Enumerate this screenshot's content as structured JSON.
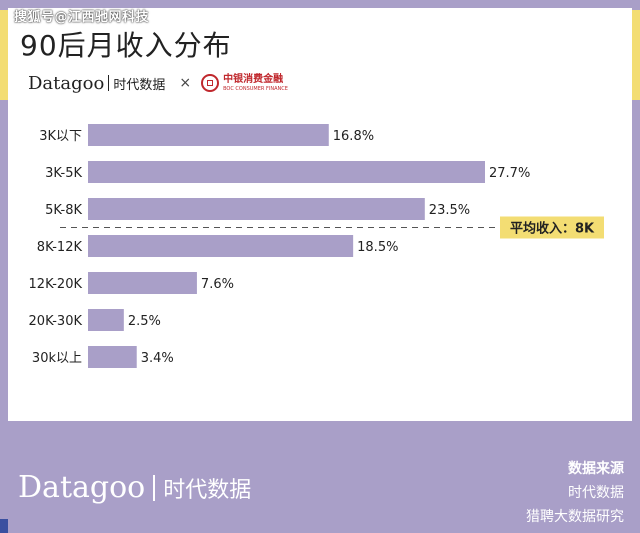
{
  "watermark": "搜狐号@江西驰网科技",
  "title": "90后月收入分布",
  "brand": {
    "logo_en": "Datagoo",
    "logo_cn": "时代数据",
    "cross": "×",
    "partner_cn": "中银消费金融",
    "partner_en": "BOC CONSUMER FINANCE"
  },
  "colors": {
    "bar": "#a99fc8",
    "background": "#a99fc8",
    "accent": "#f3dd73",
    "boc_red": "#c0282d"
  },
  "chart_data": {
    "type": "bar",
    "orientation": "horizontal",
    "categories": [
      "3K以下",
      "3K-5K",
      "5K-8K",
      "8K-12K",
      "12K-20K",
      "20K-30K",
      "30k以上"
    ],
    "values": [
      16.8,
      27.7,
      23.5,
      18.5,
      7.6,
      2.5,
      3.4
    ],
    "value_labels": [
      "16.8%",
      "27.7%",
      "23.5%",
      "18.5%",
      "7.6%",
      "2.5%",
      "3.4%"
    ],
    "xlim": [
      0,
      27.7
    ],
    "grid": false,
    "annotation": {
      "label": "平均收入：8K",
      "between_categories": [
        "5K-8K",
        "8K-12K"
      ]
    }
  },
  "footer": {
    "logo_en": "Datagoo",
    "logo_cn": "时代数据",
    "source_heading": "数据来源",
    "sources": [
      "时代数据",
      "猎聘大数据研究"
    ]
  }
}
